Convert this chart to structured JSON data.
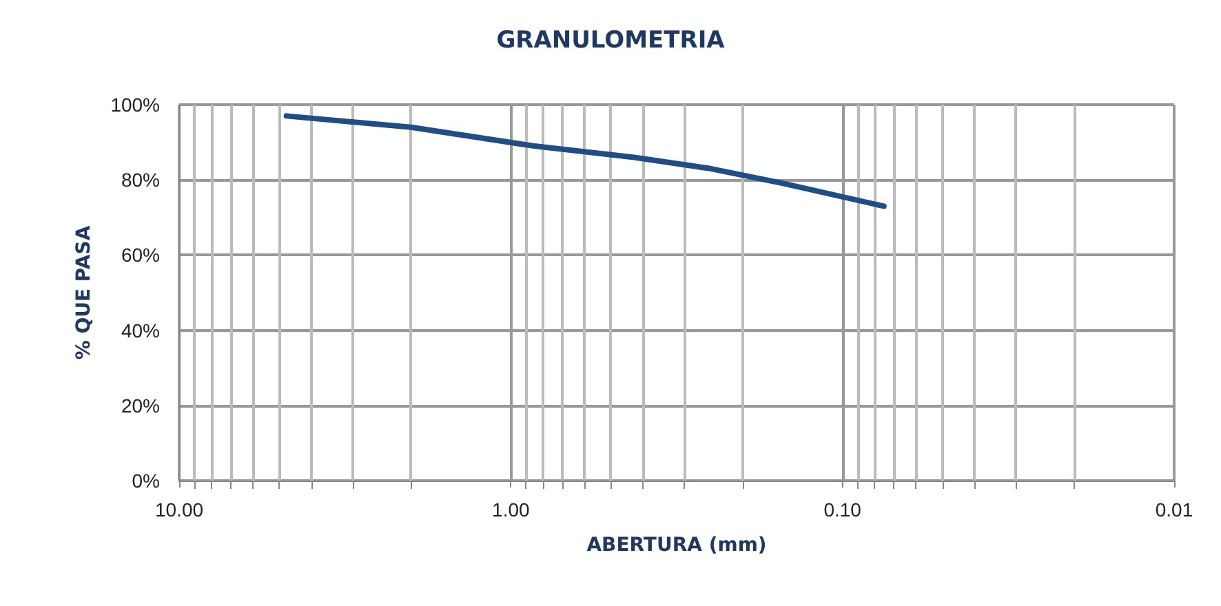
{
  "chart_data": {
    "type": "line",
    "title": "GRANULOMETRIA",
    "xlabel": "ABERTURA (mm)",
    "ylabel": "% QUE PASA",
    "log": "x",
    "grid": true,
    "marker": "none",
    "xlim": [
      10,
      0.01
    ],
    "xticks": [
      {
        "value": 10,
        "label": "10.00"
      },
      {
        "value": 1,
        "label": "1.00"
      },
      {
        "value": 0.1,
        "label": "0.10"
      },
      {
        "value": 0.01,
        "label": "0.01"
      }
    ],
    "ylim": [
      0,
      100
    ],
    "yticks": [
      {
        "value": 0,
        "label": "0%"
      },
      {
        "value": 20,
        "label": "20%"
      },
      {
        "value": 40,
        "label": "40%"
      },
      {
        "value": 60,
        "label": "60%"
      },
      {
        "value": 80,
        "label": "80%"
      },
      {
        "value": 100,
        "label": "100%"
      }
    ],
    "series": [
      {
        "color": "#1f4e87",
        "x": [
          4.75,
          2,
          0.85,
          0.425,
          0.25,
          0.15,
          0.075
        ],
        "values": [
          97,
          94,
          89,
          86,
          83,
          79,
          73
        ]
      }
    ]
  }
}
